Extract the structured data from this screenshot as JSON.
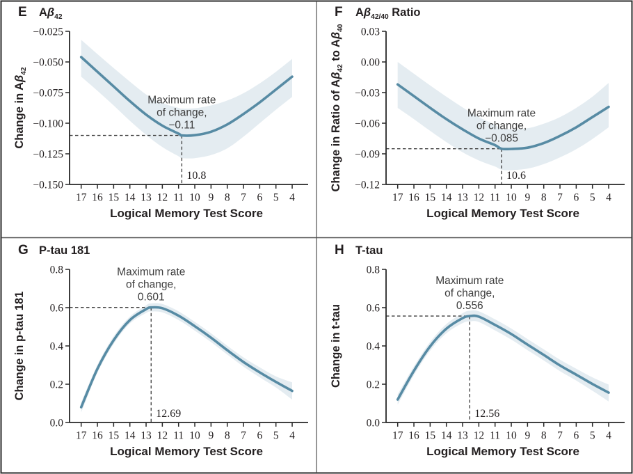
{
  "figure": {
    "kind": "four-panel biomarker figure",
    "ink_color": "#231f20",
    "axis_color": "#262626",
    "annotation_color": "#3d3d3d",
    "dash_color": "#3f3f3f",
    "border_color": "#2b2b2b",
    "divider_color": "#4f4f4f",
    "background": "#ffffff"
  },
  "chart_data": [
    {
      "type": "line",
      "panel": "E",
      "title_parts": [
        {
          "t": "A"
        },
        {
          "t": "β",
          "s": "i"
        },
        {
          "t": "42",
          "s": "sub"
        }
      ],
      "ylabel_parts": [
        {
          "t": "Change in A"
        },
        {
          "t": "β",
          "s": "i"
        },
        {
          "t": "42",
          "s": "sub"
        }
      ],
      "xlabel": "Logical Memory Test Score",
      "x_axis_reversed": true,
      "line_color": "#578ba4",
      "band_color": "#e4ecf1",
      "xticks": [
        17,
        16,
        15,
        14,
        13,
        12,
        11,
        10,
        9,
        8,
        7,
        6,
        5,
        4
      ],
      "ylim": [
        -0.15,
        -0.025
      ],
      "yticks": [
        {
          "v": -0.025,
          "label": "−0.025"
        },
        {
          "v": -0.05,
          "label": "−0.050"
        },
        {
          "v": -0.075,
          "label": "−0.075"
        },
        {
          "v": -0.1,
          "label": "−0.100"
        },
        {
          "v": -0.125,
          "label": "−0.125"
        },
        {
          "v": -0.15,
          "label": "−0.150"
        }
      ],
      "x": [
        17,
        16,
        15,
        14,
        13,
        12,
        11,
        10.8,
        10,
        9,
        8,
        7,
        6,
        5,
        4
      ],
      "y": [
        -0.046,
        -0.058,
        -0.07,
        -0.082,
        -0.093,
        -0.102,
        -0.1085,
        -0.11,
        -0.1098,
        -0.107,
        -0.101,
        -0.0925,
        -0.083,
        -0.0725,
        -0.062
      ],
      "band_upper": [
        -0.032,
        -0.0435,
        -0.055,
        -0.066,
        -0.0765,
        -0.0835,
        -0.0875,
        -0.088,
        -0.0878,
        -0.0855,
        -0.0815,
        -0.0755,
        -0.0675,
        -0.058,
        -0.0475
      ],
      "band_lower": [
        -0.062,
        -0.0735,
        -0.0855,
        -0.098,
        -0.1095,
        -0.1195,
        -0.127,
        -0.1285,
        -0.1285,
        -0.126,
        -0.1205,
        -0.111,
        -0.1,
        -0.089,
        -0.0785
      ],
      "annotation_lines": [
        "Maximum rate",
        "of change,",
        "−0.11"
      ],
      "max_rate": {
        "x": 10.8,
        "y": -0.11,
        "x_label": "10.8"
      }
    },
    {
      "type": "line",
      "panel": "F",
      "title_parts": [
        {
          "t": "A"
        },
        {
          "t": "β",
          "s": "i"
        },
        {
          "t": "42/40",
          "s": "sub"
        },
        {
          "t": " Ratio"
        }
      ],
      "ylabel_parts": [
        {
          "t": "Change in Ratio of A"
        },
        {
          "t": "β",
          "s": "i"
        },
        {
          "t": "42",
          "s": "sub"
        },
        {
          "t": " to A"
        },
        {
          "t": "β",
          "s": "i"
        },
        {
          "t": "40",
          "s": "sub"
        }
      ],
      "xlabel": "Logical Memory Test Score",
      "x_axis_reversed": true,
      "line_color": "#578ba4",
      "band_color": "#e4ecf1",
      "xticks": [
        17,
        16,
        15,
        14,
        13,
        12,
        11,
        10,
        9,
        8,
        7,
        6,
        5,
        4
      ],
      "ylim": [
        -0.12,
        0.03
      ],
      "yticks": [
        {
          "v": 0.03,
          "label": "0.03"
        },
        {
          "v": 0.0,
          "label": "0.00"
        },
        {
          "v": -0.03,
          "label": "−0.03"
        },
        {
          "v": -0.06,
          "label": "−0.06"
        },
        {
          "v": -0.09,
          "label": "−0.09"
        },
        {
          "v": -0.12,
          "label": "−0.12"
        }
      ],
      "x": [
        17,
        16,
        15,
        14,
        13,
        12,
        11,
        10.6,
        10,
        9,
        8,
        7,
        6,
        5,
        4
      ],
      "y": [
        -0.022,
        -0.0335,
        -0.045,
        -0.056,
        -0.066,
        -0.075,
        -0.0815,
        -0.085,
        -0.0852,
        -0.084,
        -0.0795,
        -0.0725,
        -0.064,
        -0.054,
        -0.044
      ],
      "band_upper": [
        0.0,
        -0.0115,
        -0.023,
        -0.034,
        -0.0445,
        -0.054,
        -0.0615,
        -0.0655,
        -0.066,
        -0.065,
        -0.0605,
        -0.054,
        -0.045,
        -0.034,
        -0.0205
      ],
      "band_lower": [
        -0.045,
        -0.056,
        -0.0675,
        -0.0785,
        -0.0885,
        -0.0965,
        -0.1025,
        -0.1055,
        -0.106,
        -0.1045,
        -0.1,
        -0.0935,
        -0.0855,
        -0.0755,
        -0.064
      ],
      "annotation_lines": [
        "Maximum rate",
        "of change,",
        "−0.085"
      ],
      "max_rate": {
        "x": 10.6,
        "y": -0.085,
        "x_label": "10.6"
      }
    },
    {
      "type": "line",
      "panel": "G",
      "title_parts": [
        {
          "t": "P-tau 181"
        }
      ],
      "ylabel_parts": [
        {
          "t": "Change in p-tau 181"
        }
      ],
      "xlabel": "Logical Memory Test Score",
      "x_axis_reversed": true,
      "line_color": "#578ba4",
      "band_color": "#e4ecf1",
      "xticks": [
        17,
        16,
        15,
        14,
        13,
        12,
        11,
        10,
        9,
        8,
        7,
        6,
        5,
        4
      ],
      "ylim": [
        0.0,
        0.8
      ],
      "yticks": [
        {
          "v": 0.8,
          "label": "0.8"
        },
        {
          "v": 0.6,
          "label": "0.6"
        },
        {
          "v": 0.4,
          "label": "0.4"
        },
        {
          "v": 0.2,
          "label": "0.2"
        },
        {
          "v": 0.0,
          "label": "0.0"
        }
      ],
      "x": [
        17,
        16,
        15,
        14,
        13,
        12.69,
        12,
        11,
        10,
        9,
        8,
        7,
        6,
        5,
        4
      ],
      "y": [
        0.08,
        0.28,
        0.43,
        0.535,
        0.592,
        0.601,
        0.597,
        0.558,
        0.503,
        0.443,
        0.378,
        0.316,
        0.262,
        0.212,
        0.165
      ],
      "band_upper": [
        0.105,
        0.301,
        0.45,
        0.553,
        0.612,
        0.622,
        0.619,
        0.581,
        0.526,
        0.466,
        0.401,
        0.34,
        0.288,
        0.241,
        0.21
      ],
      "band_lower": [
        0.052,
        0.259,
        0.41,
        0.517,
        0.572,
        0.58,
        0.575,
        0.535,
        0.48,
        0.42,
        0.355,
        0.292,
        0.236,
        0.183,
        0.12
      ],
      "annotation_lines": [
        "Maximum rate",
        "of change,",
        "0.601"
      ],
      "max_rate": {
        "x": 12.69,
        "y": 0.601,
        "x_label": "12.69"
      }
    },
    {
      "type": "line",
      "panel": "H",
      "title_parts": [
        {
          "t": "T-tau"
        }
      ],
      "ylabel_parts": [
        {
          "t": "Change in t-tau"
        }
      ],
      "xlabel": "Logical Memory Test Score",
      "x_axis_reversed": true,
      "line_color": "#578ba4",
      "band_color": "#e4ecf1",
      "xticks": [
        17,
        16,
        15,
        14,
        13,
        12,
        11,
        10,
        9,
        8,
        7,
        6,
        5,
        4
      ],
      "ylim": [
        0.0,
        0.8
      ],
      "yticks": [
        {
          "v": 0.8,
          "label": "0.8"
        },
        {
          "v": 0.6,
          "label": "0.6"
        },
        {
          "v": 0.4,
          "label": "0.4"
        },
        {
          "v": 0.2,
          "label": "0.2"
        },
        {
          "v": 0.0,
          "label": "0.0"
        }
      ],
      "x": [
        17,
        16,
        15,
        14,
        13,
        12.56,
        12,
        11,
        10,
        9,
        8,
        7,
        6,
        5,
        4
      ],
      "y": [
        0.12,
        0.27,
        0.398,
        0.49,
        0.545,
        0.556,
        0.553,
        0.51,
        0.462,
        0.407,
        0.353,
        0.298,
        0.25,
        0.201,
        0.156
      ],
      "band_upper": [
        0.147,
        0.293,
        0.421,
        0.514,
        0.571,
        0.584,
        0.581,
        0.539,
        0.491,
        0.436,
        0.382,
        0.328,
        0.281,
        0.236,
        0.198
      ],
      "band_lower": [
        0.093,
        0.247,
        0.375,
        0.466,
        0.519,
        0.528,
        0.525,
        0.481,
        0.433,
        0.378,
        0.324,
        0.268,
        0.219,
        0.166,
        0.11
      ],
      "annotation_lines": [
        "Maximum rate",
        "of change,",
        "0.556"
      ],
      "max_rate": {
        "x": 12.56,
        "y": 0.556,
        "x_label": "12.56"
      }
    }
  ]
}
